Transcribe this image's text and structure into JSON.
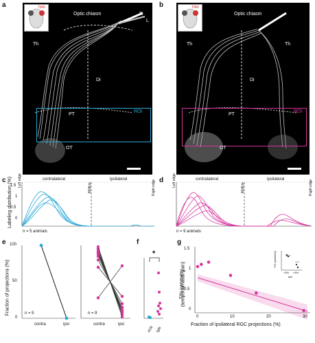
{
  "panels": {
    "a": {
      "label": "a",
      "inset": "TMR",
      "optic_chiasm": "Optic chiasm",
      "th": "Th",
      "di": "Di",
      "pt": "PT",
      "ot": "OT",
      "roi": "ROI",
      "compass_r": "R",
      "compass_l": "L"
    },
    "b": {
      "label": "b",
      "inset": "TMR",
      "optic_chiasm": "Optic chiasm",
      "th_left": "Th",
      "th_right": "Th",
      "di": "Di",
      "pt": "PT",
      "ot": "OT",
      "roi": "ROI"
    },
    "c": {
      "label": "c",
      "left_edge": "Left edge",
      "contralateral": "contralateral",
      "midline": "Midline",
      "ipsilateral": "ipsilateral",
      "right_edge": "Right edge",
      "ylabel": "Labeling distribution (%)",
      "ticks": [
        "1.5",
        "1",
        "0.5",
        "0"
      ],
      "n_text": "n = 5 animals",
      "color": "#29a9d6"
    },
    "d": {
      "label": "d",
      "left_edge": "Left edge",
      "contralateral": "contralateral",
      "midline": "Midline",
      "ipsilateral": "ipsilateral",
      "right_edge": "Right edge",
      "n_text": "n = 9 animals",
      "color": "#d6359c"
    },
    "e": {
      "label": "e",
      "ylabel": "Fraction of projections (%)",
      "yticks": [
        "100",
        "50",
        "0"
      ],
      "left": {
        "n": "n = 5",
        "xlabels": [
          "contra",
          "ipsi"
        ],
        "color": "#29a9d6"
      },
      "right": {
        "n": "n = 9",
        "xlabels": [
          "contra",
          "ipsi"
        ],
        "color": "#d6359c"
      }
    },
    "f": {
      "label": "f",
      "star": "*",
      "xlabels": [
        "isl2b",
        "fgf8"
      ]
    },
    "g": {
      "label": "g",
      "ylabel_1": "T/N symmetry",
      "ylabel_2": "(temporal/nasal gain)",
      "xlabel": "Fraction of ipsilateral RGC projections (%)",
      "xticks": [
        "0",
        "10",
        "20",
        "30"
      ],
      "yticks": [
        "1.5",
        "1",
        "0.5",
        "0"
      ],
      "inset_ylabel": "T/N symmetry",
      "inset_xlabels": [
        "<5%",
        ">5%"
      ],
      "inset_xtitle": "ipsi",
      "color": "#d6359c"
    }
  },
  "chart_data": [
    {
      "type": "line",
      "panel": "e-left",
      "categories": [
        "contra",
        "ipsi"
      ],
      "ylim": [
        0,
        100
      ],
      "series": [
        {
          "values": [
            100,
            0
          ]
        },
        {
          "values": [
            100,
            0
          ]
        },
        {
          "values": [
            100,
            0
          ]
        },
        {
          "values": [
            100,
            0
          ]
        },
        {
          "values": [
            100,
            0
          ]
        }
      ]
    },
    {
      "type": "line",
      "panel": "e-right",
      "categories": [
        "contra",
        "ipsi"
      ],
      "ylim": [
        0,
        100
      ],
      "series": [
        {
          "values": [
            95,
            5
          ]
        },
        {
          "values": [
            92,
            8
          ]
        },
        {
          "values": [
            90,
            10
          ]
        },
        {
          "values": [
            88,
            12
          ]
        },
        {
          "values": [
            85,
            15
          ]
        },
        {
          "values": [
            80,
            20
          ]
        },
        {
          "values": [
            70,
            30
          ]
        },
        {
          "values": [
            28,
            72
          ]
        },
        {
          "values": [
            98,
            2
          ]
        }
      ]
    },
    {
      "type": "scatter",
      "panel": "g",
      "x": [
        0,
        1,
        3,
        9,
        16,
        29
      ],
      "y": [
        1.05,
        1.1,
        1.15,
        0.85,
        0.45,
        0.05
      ],
      "xlim": [
        0,
        30
      ],
      "ylim": [
        0,
        1.5
      ]
    }
  ]
}
